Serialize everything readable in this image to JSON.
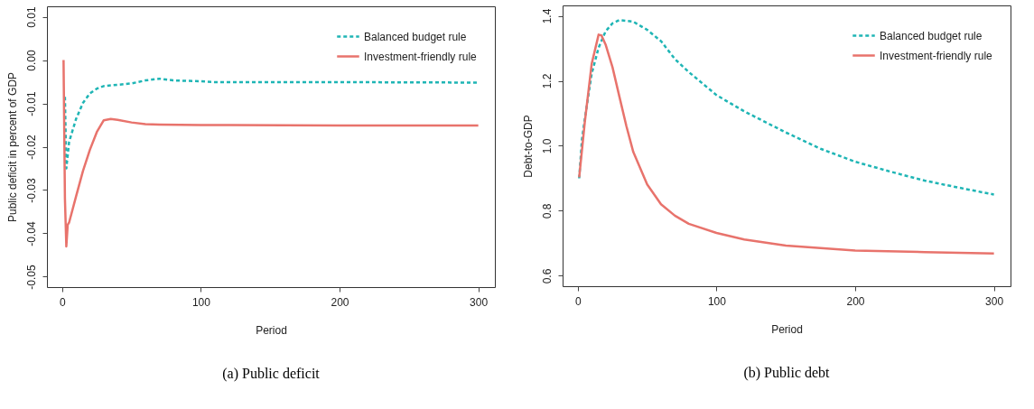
{
  "chart_data": [
    {
      "type": "line",
      "title": "(a) Public deficit",
      "xlabel": "Period",
      "ylabel": "Public deficit in percent of GDP",
      "xlim": [
        -10.96,
        311.96
      ],
      "xticks": [
        0,
        100,
        200,
        300
      ],
      "ylim": [
        -0.0524,
        0.0124
      ],
      "yticks": [
        -0.05,
        -0.04,
        -0.03,
        -0.02,
        -0.01,
        {
          "value": 0,
          "label": "0.00"
        },
        0.01
      ],
      "grid": false,
      "legend": "top right",
      "series": [
        {
          "name": "Balanced budget rule",
          "color": "#1fb5b5",
          "line_style": "dashed",
          "x": [
            2,
            3,
            5,
            10,
            15,
            20,
            25,
            30,
            40,
            50,
            60,
            70,
            80,
            100,
            110,
            200,
            300
          ],
          "values": [
            -0.0085,
            -0.025,
            -0.0189,
            -0.0136,
            -0.0099,
            -0.0077,
            -0.0066,
            -0.006,
            -0.0057,
            -0.0054,
            -0.0047,
            -0.0043,
            -0.0047,
            -0.0049,
            -0.0051,
            -0.0051,
            -0.0052
          ]
        },
        {
          "name": "Investment-friendly rule",
          "color": "#e8736c",
          "line_style": "solid",
          "x": [
            1,
            2,
            3,
            4,
            5,
            10,
            15,
            20,
            25,
            30,
            35,
            40,
            50,
            60,
            70,
            100,
            200,
            300
          ],
          "values": [
            0.0,
            -0.032,
            -0.043,
            -0.038,
            -0.0375,
            -0.0315,
            -0.0256,
            -0.0207,
            -0.0166,
            -0.0139,
            -0.0136,
            -0.0138,
            -0.0144,
            -0.0148,
            -0.0149,
            -0.015,
            -0.0151,
            -0.0151
          ]
        }
      ]
    },
    {
      "type": "line",
      "title": "(b) Public debt",
      "xlabel": "Period",
      "ylabel": "Debt-to-GDP",
      "xlim": [
        -10.96,
        311.96
      ],
      "xticks": [
        0,
        100,
        200,
        300
      ],
      "ylim": [
        0.568,
        1.432
      ],
      "yticks": [
        0.6,
        0.8,
        {
          "value": 1,
          "label": "1.0"
        },
        1.2,
        1.4
      ],
      "grid": false,
      "legend": "top right",
      "series": [
        {
          "name": "Balanced budget rule",
          "color": "#1fb5b5",
          "line_style": "dashed",
          "x": [
            1,
            3,
            5,
            10,
            15,
            20,
            25,
            30,
            40,
            50,
            60,
            70,
            80,
            100,
            120,
            150,
            175,
            200,
            225,
            250,
            275,
            300
          ],
          "values": [
            0.9,
            1.02,
            1.081,
            1.222,
            1.302,
            1.352,
            1.377,
            1.387,
            1.382,
            1.357,
            1.322,
            1.267,
            1.227,
            1.156,
            1.106,
            1.041,
            0.991,
            0.951,
            0.921,
            0.893,
            0.871,
            0.85
          ]
        },
        {
          "name": "Investment-friendly rule",
          "color": "#e8736c",
          "line_style": "solid",
          "x": [
            1,
            5,
            10,
            15,
            17,
            20,
            25,
            30,
            35,
            40,
            50,
            60,
            70,
            80,
            100,
            120,
            150,
            200,
            250,
            300
          ],
          "values": [
            0.903,
            1.071,
            1.252,
            1.342,
            1.34,
            1.312,
            1.242,
            1.151,
            1.061,
            0.981,
            0.881,
            0.82,
            0.785,
            0.76,
            0.732,
            0.712,
            0.693,
            0.678,
            0.673,
            0.669
          ]
        }
      ]
    }
  ]
}
